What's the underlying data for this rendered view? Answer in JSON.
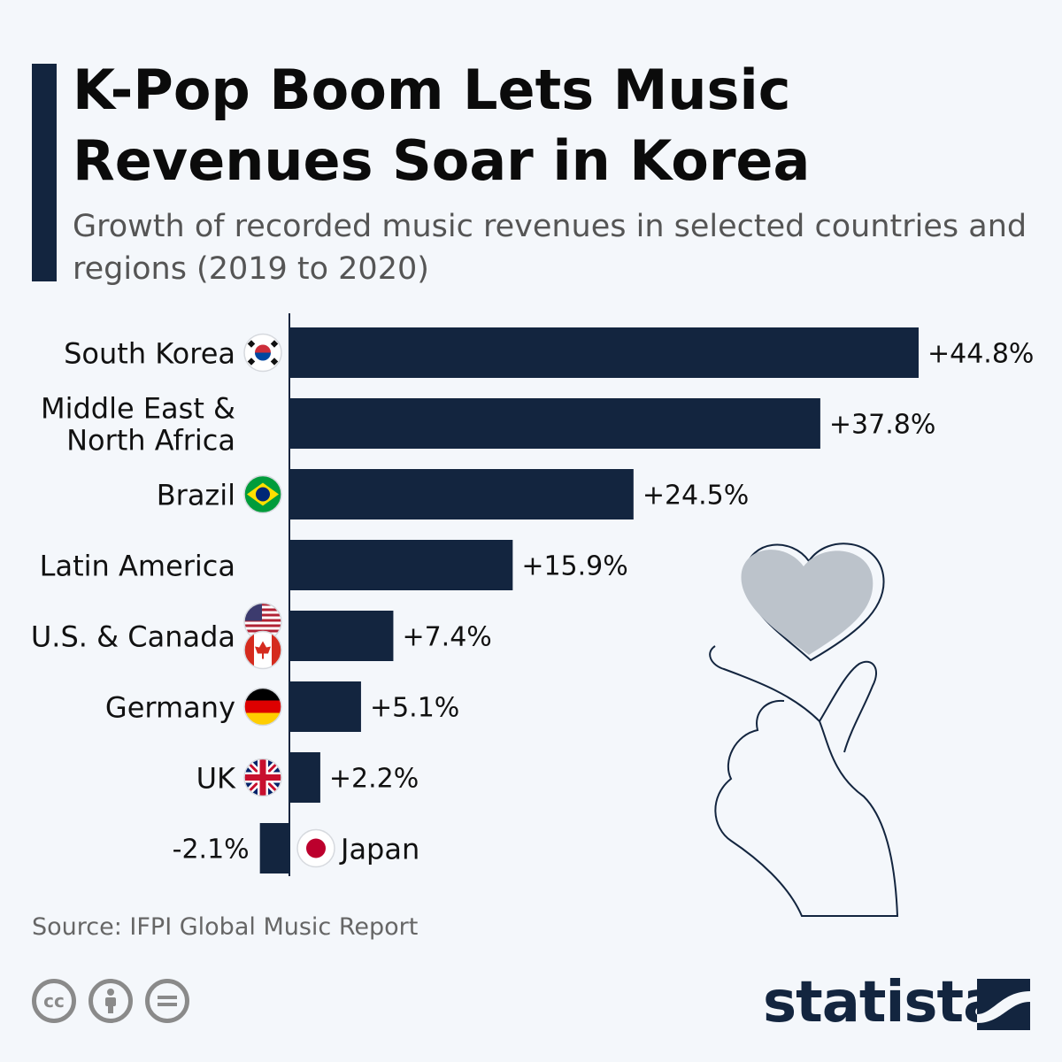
{
  "header": {
    "title": "K-Pop Boom Lets Music Revenues Soar in Korea",
    "subtitle": "Growth of recorded music revenues in selected countries and regions (2019 to 2020)"
  },
  "chart_data": {
    "type": "bar",
    "orientation": "horizontal",
    "title": "K-Pop Boom Lets Music Revenues Soar in Korea",
    "subtitle": "Growth of recorded music revenues in selected countries and regions (2019 to 2020)",
    "categories": [
      [
        "South Korea"
      ],
      [
        "Middle East &",
        "North Africa"
      ],
      [
        "Brazil"
      ],
      [
        "Latin America"
      ],
      [
        "U.S. & Canada"
      ],
      [
        "Germany"
      ],
      [
        "UK"
      ],
      [
        "Japan"
      ]
    ],
    "values": [
      44.8,
      37.8,
      24.5,
      15.9,
      7.4,
      5.1,
      2.2,
      -2.1
    ],
    "value_labels": [
      "+44.8%",
      "+37.8%",
      "+24.5%",
      "+15.9%",
      "+7.4%",
      "+5.1%",
      "+2.2%",
      "-2.1%"
    ],
    "flags": [
      "kr-flag-icon",
      "",
      "br-flag-icon",
      "",
      "us-ca-flag-icon",
      "de-flag-icon",
      "uk-flag-icon",
      "jp-flag-icon"
    ],
    "unit": "%",
    "grid": false,
    "legend": "none",
    "bar_color": "#13253f"
  },
  "footer": {
    "source": "Source: IFPI Global Music Report",
    "brand": "statista"
  },
  "colors": {
    "bar": "#13253f",
    "background": "#f4f7fb",
    "heart": "#bcc3cb"
  }
}
